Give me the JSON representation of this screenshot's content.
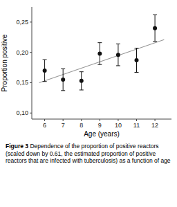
{
  "chart_data": {
    "type": "scatter",
    "x_label": "Age (years)",
    "y_label": "Proportion positive",
    "caption": {
      "bold": "Figure 3",
      "text": " Dependence of the proportion of positive reactors (scaled down by 0.61, the estimated proportion of positive reactors that are infected with tuberculosis) as a function of age"
    },
    "series": [
      {
        "type": "scatter",
        "color": "#111111",
        "x": [
          6,
          7,
          8,
          9,
          10,
          11,
          12
        ],
        "values": [
          0.17,
          0.155,
          0.153,
          0.198,
          0.196,
          0.187,
          0.24
        ],
        "error_lower": [
          0.018,
          0.018,
          0.015,
          0.018,
          0.018,
          0.02,
          0.022
        ],
        "error_upper": [
          0.018,
          0.018,
          0.015,
          0.018,
          0.018,
          0.02,
          0.022
        ]
      },
      {
        "type": "line",
        "color": "#999999",
        "x": [
          5.7,
          12.5
        ],
        "values": [
          0.15,
          0.221
        ]
      }
    ],
    "xlim": [
      5.3,
      12.9
    ],
    "ylim": [
      0.09,
      0.275
    ],
    "xticks": [
      6,
      7,
      8,
      9,
      10,
      11,
      12
    ],
    "yticks": [
      {
        "value": 0.1,
        "label": "0,10"
      },
      {
        "value": 0.15,
        "label": "0,15"
      },
      {
        "value": 0.2,
        "label": "0,20"
      },
      {
        "value": 0.25,
        "label": "0,25"
      }
    ],
    "grid": false
  }
}
